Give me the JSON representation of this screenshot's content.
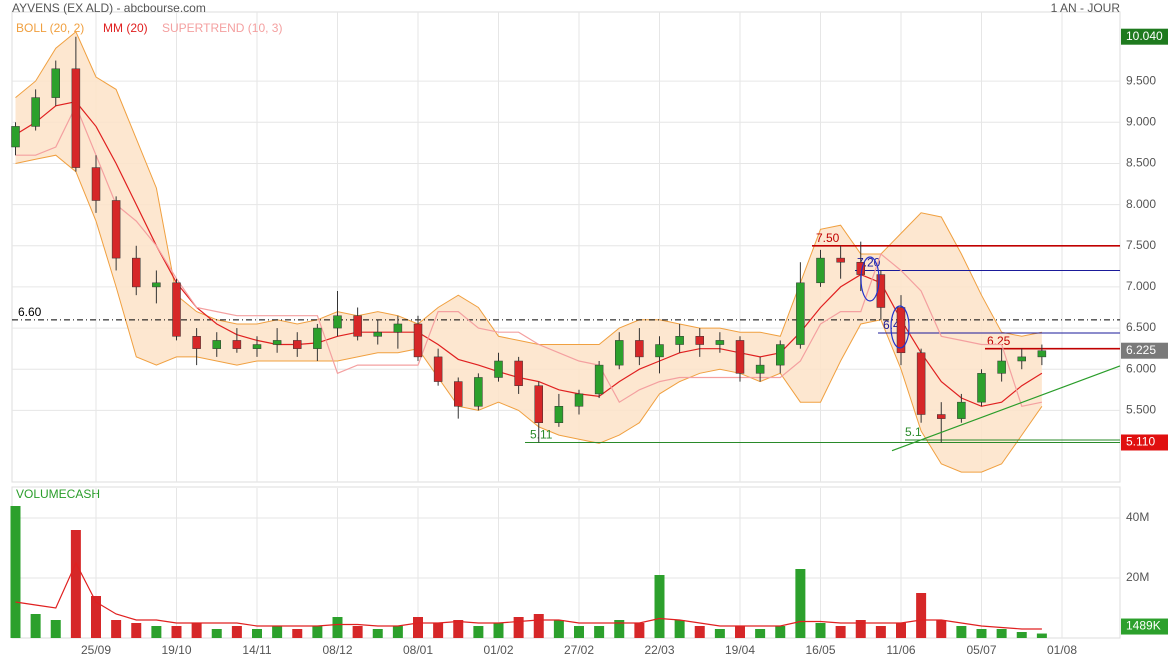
{
  "chart_data": [
    {
      "type": "candlestick",
      "title": "AYVENS (EX ALD) - abcbourse.com",
      "subtitle": "1 AN - JOUR",
      "up_color": "#2ca02c",
      "down_color": "#d62728",
      "open": [
        8.7,
        8.95,
        9.3,
        9.65,
        8.45,
        8.05,
        7.35,
        7.0,
        7.05,
        6.4,
        6.25,
        6.35,
        6.25,
        6.3,
        6.35,
        6.25,
        6.5,
        6.65,
        6.4,
        6.45,
        6.55,
        6.15,
        5.85,
        5.55,
        5.9,
        6.1,
        5.8,
        5.35,
        5.55,
        5.7,
        6.05,
        6.35,
        6.15,
        6.3,
        6.4,
        6.3,
        6.35,
        5.95,
        6.05,
        6.3,
        7.05,
        7.35,
        7.3,
        7.15,
        6.75,
        6.2,
        5.45,
        5.4,
        5.6,
        5.95,
        6.1,
        6.15,
        null
      ],
      "high": [
        9.0,
        9.4,
        9.75,
        10.04,
        8.6,
        8.1,
        7.5,
        7.2,
        7.1,
        6.5,
        6.45,
        6.5,
        6.4,
        6.5,
        6.45,
        6.55,
        6.95,
        6.75,
        6.6,
        6.65,
        6.65,
        6.25,
        5.9,
        5.95,
        6.2,
        6.15,
        5.85,
        5.7,
        5.75,
        6.1,
        6.45,
        6.5,
        6.4,
        6.55,
        6.5,
        6.45,
        6.4,
        6.15,
        6.35,
        7.3,
        7.45,
        7.5,
        7.55,
        7.2,
        6.9,
        6.25,
        5.6,
        5.7,
        6.0,
        6.25,
        6.25,
        6.3,
        null
      ],
      "low": [
        8.6,
        8.9,
        9.2,
        8.4,
        7.9,
        7.2,
        6.9,
        6.8,
        6.35,
        6.05,
        6.15,
        6.2,
        6.15,
        6.2,
        6.15,
        6.1,
        6.4,
        6.35,
        6.3,
        6.25,
        6.1,
        5.8,
        5.4,
        5.5,
        5.85,
        5.7,
        5.11,
        5.3,
        5.45,
        5.65,
        6.0,
        6.05,
        5.95,
        6.2,
        6.15,
        6.2,
        5.85,
        5.85,
        5.95,
        6.25,
        7.0,
        7.1,
        6.95,
        6.6,
        6.05,
        5.35,
        5.11,
        5.35,
        5.55,
        5.85,
        6.0,
        6.05,
        null
      ],
      "close": [
        8.95,
        9.3,
        9.65,
        8.45,
        8.05,
        7.35,
        7.0,
        7.05,
        6.4,
        6.25,
        6.35,
        6.25,
        6.3,
        6.35,
        6.25,
        6.5,
        6.65,
        6.4,
        6.45,
        6.55,
        6.15,
        5.85,
        5.55,
        5.9,
        6.1,
        5.8,
        5.35,
        5.55,
        5.7,
        6.05,
        6.35,
        6.15,
        6.3,
        6.4,
        6.3,
        6.35,
        5.95,
        6.05,
        6.3,
        7.05,
        7.35,
        7.3,
        7.15,
        6.75,
        6.2,
        5.45,
        5.4,
        5.6,
        5.95,
        6.1,
        6.15,
        6.225,
        null
      ],
      "bands": {
        "name": "BOLL (20, 2)",
        "color": "#f0a040",
        "fill": "#fde3c8",
        "upper": [
          9.3,
          9.5,
          9.9,
          10.1,
          9.55,
          9.4,
          8.8,
          8.2,
          6.9,
          6.7,
          6.6,
          6.55,
          6.55,
          6.6,
          6.55,
          6.6,
          6.7,
          6.65,
          6.7,
          6.65,
          6.55,
          6.75,
          6.9,
          6.75,
          6.4,
          6.35,
          6.3,
          6.3,
          6.3,
          6.3,
          6.5,
          6.6,
          6.6,
          6.55,
          6.5,
          6.5,
          6.45,
          6.45,
          6.4,
          7.05,
          7.7,
          7.75,
          7.4,
          7.4,
          7.65,
          7.9,
          7.85,
          7.4,
          6.9,
          6.45,
          6.4,
          6.45,
          null
        ],
        "lower": [
          8.5,
          8.55,
          8.6,
          8.4,
          7.8,
          7.0,
          6.15,
          6.05,
          6.15,
          6.15,
          6.1,
          6.05,
          6.1,
          6.1,
          6.1,
          6.1,
          6.1,
          6.15,
          6.2,
          6.2,
          6.25,
          5.9,
          5.55,
          5.5,
          5.6,
          5.5,
          5.3,
          5.2,
          5.15,
          5.1,
          5.2,
          5.35,
          5.7,
          5.85,
          5.95,
          6.0,
          5.95,
          5.85,
          5.95,
          5.6,
          5.6,
          6.1,
          6.55,
          6.6,
          6.0,
          5.25,
          4.85,
          4.75,
          4.75,
          4.85,
          5.2,
          5.55,
          null
        ]
      },
      "lines": [
        {
          "name": "MM (20)",
          "color": "#e02020",
          "values": [
            8.85,
            9.0,
            9.2,
            9.25,
            8.95,
            8.5,
            8.0,
            7.5,
            7.05,
            6.75,
            6.55,
            6.42,
            6.35,
            6.3,
            6.3,
            6.32,
            6.4,
            6.45,
            6.45,
            6.45,
            6.45,
            6.3,
            6.12,
            6.05,
            5.97,
            5.9,
            5.85,
            5.75,
            5.7,
            5.67,
            5.85,
            6.0,
            6.1,
            6.2,
            6.25,
            6.25,
            6.2,
            6.15,
            6.2,
            6.45,
            6.75,
            7.0,
            7.15,
            7.05,
            6.6,
            6.2,
            5.85,
            5.65,
            5.55,
            5.6,
            5.8,
            5.95,
            null
          ]
        },
        {
          "name": "SUPERTREND (10, 3)",
          "color": "#f4a0a0",
          "values": [
            8.6,
            8.6,
            8.7,
            9.2,
            8.6,
            8.0,
            7.8,
            7.5,
            7.1,
            6.75,
            6.7,
            6.65,
            6.65,
            6.65,
            6.65,
            6.65,
            5.95,
            6.05,
            6.05,
            6.05,
            6.05,
            6.7,
            6.7,
            6.5,
            6.45,
            6.45,
            6.3,
            6.2,
            6.1,
            6.05,
            5.6,
            5.75,
            5.85,
            5.9,
            5.9,
            5.9,
            5.9,
            5.9,
            5.9,
            6.1,
            6.55,
            6.7,
            6.7,
            7.4,
            7.2,
            6.95,
            6.4,
            6.35,
            6.3,
            6.3,
            5.55,
            5.6,
            null
          ]
        }
      ],
      "levels": [
        {
          "value": 6.6,
          "label": "6.60",
          "color": "#000000",
          "style": "dashdot"
        },
        {
          "value": 7.5,
          "label": "7.50",
          "color": "#c00000",
          "style": "solid"
        },
        {
          "value": 7.2,
          "label": "7.20",
          "color": "#1a1a9a",
          "style": "solid"
        },
        {
          "value": 6.44,
          "label": "6.44",
          "color": "#1a1a9a",
          "style": "solid"
        },
        {
          "value": 6.25,
          "label": "6.25",
          "color": "#c00000",
          "style": "solid"
        },
        {
          "value": 5.11,
          "label": "5.11",
          "color": "#2a8a2a",
          "style": "solid"
        },
        {
          "value": 5.14,
          "label": "5.1",
          "color": "#2a8a2a",
          "style": "solid"
        }
      ],
      "trendline": {
        "color": "#2a9d2a",
        "values": [
          5.01,
          6.04
        ]
      },
      "markers": [
        {
          "value": 10.04,
          "label": "10.040",
          "color": "#1e7a1e"
        },
        {
          "value": 6.225,
          "label": "6.225",
          "color": "#7a7a7a"
        },
        {
          "value": 5.11,
          "label": "5.110",
          "color": "#e01010"
        }
      ],
      "ylim": [
        4.63,
        10.34
      ],
      "yticks": [
        {
          "value": 5.5,
          "label": "5.500"
        },
        {
          "value": 6.0,
          "label": "6.000"
        },
        {
          "value": 6.5,
          "label": "6.500"
        },
        {
          "value": 7.0,
          "label": "7.000"
        },
        {
          "value": 7.5,
          "label": "7.500"
        },
        {
          "value": 8.0,
          "label": "8.000"
        },
        {
          "value": 8.5,
          "label": "8.500"
        },
        {
          "value": 9.0,
          "label": "9.000"
        },
        {
          "value": 9.5,
          "label": "9.500"
        }
      ],
      "grid": true
    },
    {
      "type": "bar",
      "title": "VOLUMECASH",
      "categories": [
        null,
        null,
        null,
        null,
        "25/09",
        null,
        null,
        null,
        "19/10",
        null,
        null,
        null,
        "14/11",
        null,
        null,
        null,
        "08/12",
        null,
        null,
        null,
        "08/01",
        null,
        null,
        null,
        "01/02",
        null,
        null,
        null,
        "27/02",
        null,
        null,
        null,
        "22/03",
        null,
        null,
        null,
        "19/04",
        null,
        null,
        null,
        "16/05",
        null,
        null,
        null,
        "11/06",
        null,
        null,
        null,
        "05/07",
        null,
        null,
        null,
        "01/08"
      ],
      "values": [
        44,
        8,
        6,
        36,
        14,
        6,
        5,
        4,
        4,
        5,
        3,
        4,
        3,
        4,
        3,
        4,
        7,
        4,
        3,
        4,
        7,
        5,
        6,
        4,
        5,
        7,
        8,
        6,
        4,
        4,
        6,
        5,
        21,
        6,
        4,
        3,
        4,
        3,
        4,
        23,
        5,
        4,
        6,
        4,
        5,
        15,
        6,
        4,
        3,
        3,
        2,
        1.489,
        null
      ],
      "average": {
        "color": "#e02020",
        "values": [
          12,
          11,
          10,
          25,
          12,
          8,
          6,
          6,
          5,
          5,
          5,
          5,
          4,
          4,
          4,
          4,
          4.5,
          4.5,
          4,
          4,
          5,
          5,
          5.5,
          5,
          5,
          5.5,
          6,
          6,
          5,
          5,
          5,
          5,
          6.5,
          6,
          5,
          4,
          4,
          4,
          4,
          5.5,
          5.5,
          5,
          5,
          5,
          5,
          6,
          6,
          5,
          4,
          3.5,
          3,
          3,
          null
        ]
      },
      "last": {
        "value": 1.489,
        "label": "1489K",
        "color": "#2ca02c"
      },
      "ylim": [
        0,
        50
      ],
      "yticks": [
        {
          "value": 20,
          "label": "20M"
        },
        {
          "value": 40,
          "label": "40M"
        }
      ],
      "grid": true
    }
  ]
}
